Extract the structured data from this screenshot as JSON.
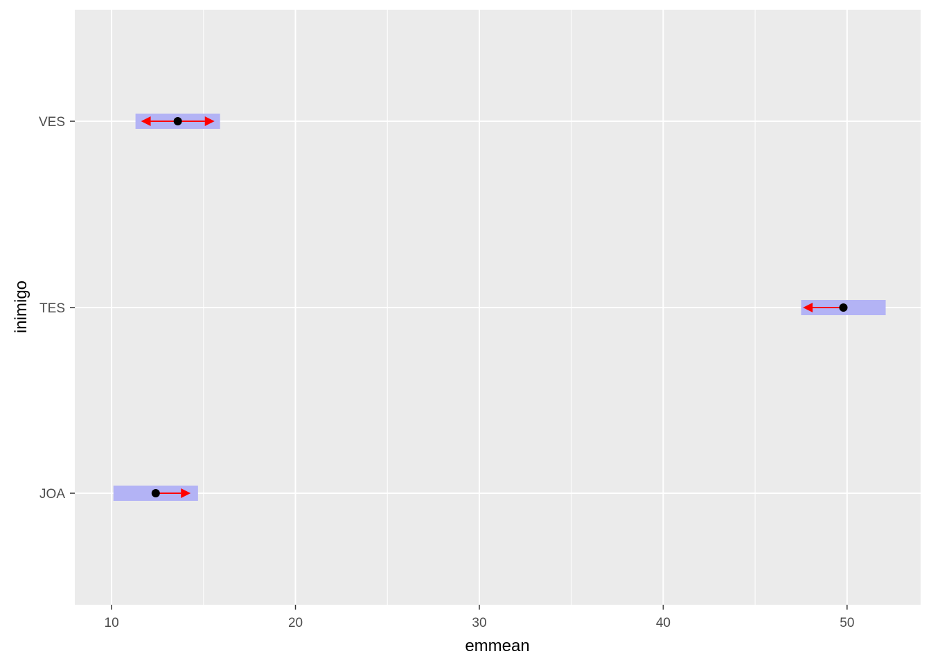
{
  "chart_data": {
    "type": "emmeans-interval",
    "xlabel": "emmean",
    "ylabel": "inimigo",
    "xlim": [
      8,
      54
    ],
    "x_ticks": [
      10,
      20,
      30,
      40,
      50
    ],
    "x_minor_ticks": [
      15,
      25,
      35,
      45
    ],
    "categories": [
      "JOA",
      "TES",
      "VES"
    ],
    "series": [
      {
        "values": [
          {
            "category": "JOA",
            "emmean": 12.4,
            "lower": 10.1,
            "upper": 14.7,
            "arrow_left": null,
            "arrow_right": 14.3
          },
          {
            "category": "TES",
            "emmean": 49.8,
            "lower": 47.5,
            "upper": 52.1,
            "arrow_left": 47.6,
            "arrow_right": null
          },
          {
            "category": "VES",
            "emmean": 13.6,
            "lower": 11.3,
            "upper": 15.9,
            "arrow_left": 11.6,
            "arrow_right": 15.6
          }
        ]
      }
    ],
    "grid": true,
    "colors": {
      "panel_background": "#ebebeb",
      "grid_line": "#ffffff",
      "interval_bar": "#b3b3f5",
      "comparison_arrow": "#ff0000",
      "point": "#000000"
    }
  }
}
